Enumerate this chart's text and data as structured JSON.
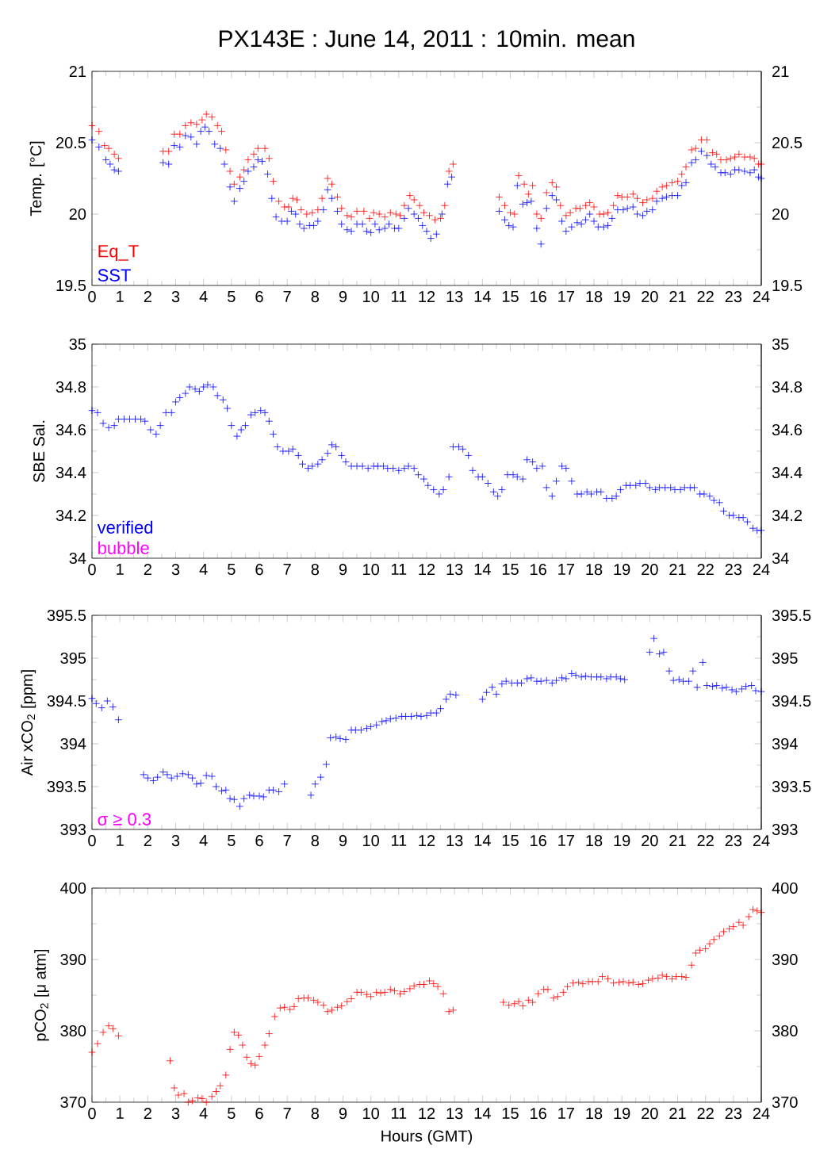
{
  "chart_data": [
    {
      "type": "scatter",
      "title": "PX143E : June 14, 2011 : 10min. mean",
      "ylabel": "Temp. [°C]",
      "xlim": [
        0,
        24
      ],
      "xticks": [
        0,
        1,
        2,
        3,
        4,
        5,
        6,
        7,
        8,
        9,
        10,
        11,
        12,
        13,
        14,
        15,
        16,
        17,
        18,
        19,
        20,
        21,
        22,
        23,
        24
      ],
      "ylim": [
        19.5,
        21
      ],
      "yticks": [
        19.5,
        20,
        20.5,
        21
      ],
      "y2lim": [
        19.5,
        21
      ],
      "y2ticks": [
        19.5,
        20,
        20.5,
        21
      ],
      "marker": "cross",
      "legend": "bottom left",
      "series": [
        {
          "name": "Eq_T",
          "color": "#ff0000",
          "x": [
            0.0,
            0.25,
            0.45,
            0.6,
            0.8,
            0.95,
            2.55,
            2.75,
            2.95,
            3.15,
            3.35,
            3.55,
            3.75,
            3.95,
            4.1,
            4.3,
            4.5,
            4.65,
            4.8,
            4.95,
            5.1,
            5.3,
            5.45,
            5.6,
            5.8,
            5.95,
            6.2,
            6.35,
            6.5,
            6.7,
            6.9,
            7.05,
            7.2,
            7.35,
            7.5,
            7.7,
            7.9,
            8.1,
            8.25,
            8.45,
            8.6,
            8.8,
            8.95,
            9.15,
            9.3,
            9.5,
            9.75,
            9.95,
            10.1,
            10.3,
            10.5,
            10.7,
            10.9,
            11.05,
            11.2,
            11.4,
            11.55,
            11.75,
            11.9,
            12.1,
            12.3,
            12.5,
            12.65,
            12.8,
            12.95,
            14.6,
            14.8,
            15.0,
            15.15,
            15.3,
            15.5,
            15.65,
            15.8,
            15.95,
            16.1,
            16.3,
            16.5,
            16.65,
            16.8,
            17.0,
            17.15,
            17.35,
            17.5,
            17.7,
            17.85,
            18.0,
            18.2,
            18.35,
            18.5,
            18.7,
            18.85,
            19.0,
            19.2,
            19.4,
            19.55,
            19.75,
            19.9,
            20.1,
            20.25,
            20.45,
            20.6,
            20.8,
            21.0,
            21.15,
            21.3,
            21.5,
            21.65,
            21.85,
            22.05,
            22.25,
            22.4,
            22.55,
            22.75,
            22.9,
            23.05,
            23.2,
            23.4,
            23.6,
            23.75,
            23.9,
            24.0
          ],
          "values": [
            20.62,
            20.58,
            20.48,
            20.46,
            20.42,
            20.39,
            20.44,
            20.44,
            20.56,
            20.56,
            20.62,
            20.64,
            20.63,
            20.66,
            20.7,
            20.68,
            20.62,
            20.58,
            20.45,
            20.3,
            20.21,
            20.26,
            20.31,
            20.38,
            20.42,
            20.46,
            20.46,
            20.39,
            20.23,
            20.09,
            20.05,
            20.05,
            20.11,
            20.1,
            20.03,
            20.0,
            20.01,
            20.03,
            20.11,
            20.25,
            20.21,
            20.12,
            20.04,
            19.99,
            19.98,
            20.02,
            20.02,
            19.97,
            20.01,
            20.0,
            19.98,
            20.01,
            20.0,
            19.99,
            20.06,
            20.13,
            20.1,
            20.06,
            20.01,
            19.99,
            19.96,
            19.97,
            20.06,
            20.3,
            20.35,
            20.12,
            20.06,
            20.01,
            20.0,
            20.27,
            20.21,
            20.14,
            20.2,
            20.0,
            19.97,
            20.15,
            20.22,
            20.19,
            20.06,
            19.99,
            20.01,
            20.04,
            20.04,
            20.06,
            20.08,
            20.05,
            20.0,
            20.0,
            20.01,
            20.06,
            20.13,
            20.12,
            20.12,
            20.14,
            20.11,
            20.08,
            20.1,
            20.11,
            20.16,
            20.19,
            20.2,
            20.22,
            20.23,
            20.28,
            20.33,
            20.45,
            20.46,
            20.52,
            20.52,
            20.43,
            20.42,
            20.38,
            20.38,
            20.39,
            20.4,
            20.42,
            20.4,
            20.4,
            20.39,
            20.35,
            20.35
          ]
        },
        {
          "name": "SST",
          "color": "#0000ff",
          "x": [
            0.0,
            0.25,
            0.5,
            0.65,
            0.8,
            0.95,
            2.55,
            2.75,
            2.95,
            3.15,
            3.35,
            3.55,
            3.75,
            3.9,
            4.05,
            4.2,
            4.4,
            4.6,
            4.75,
            4.95,
            5.1,
            5.3,
            5.45,
            5.6,
            5.8,
            5.95,
            6.1,
            6.3,
            6.45,
            6.6,
            6.8,
            7.0,
            7.15,
            7.3,
            7.45,
            7.6,
            7.8,
            7.95,
            8.1,
            8.3,
            8.45,
            8.6,
            8.8,
            8.95,
            9.15,
            9.3,
            9.5,
            9.7,
            9.85,
            10.0,
            10.15,
            10.3,
            10.5,
            10.65,
            10.85,
            11.0,
            11.2,
            11.35,
            11.55,
            11.7,
            11.85,
            12.0,
            12.15,
            12.35,
            12.55,
            12.75,
            12.9,
            14.6,
            14.8,
            14.95,
            15.1,
            15.25,
            15.45,
            15.6,
            15.75,
            15.95,
            16.1,
            16.3,
            16.5,
            16.65,
            16.85,
            17.0,
            17.2,
            17.4,
            17.55,
            17.7,
            17.85,
            18.0,
            18.15,
            18.35,
            18.5,
            18.65,
            18.85,
            19.05,
            19.2,
            19.4,
            19.55,
            19.75,
            19.9,
            20.1,
            20.25,
            20.45,
            20.6,
            20.8,
            21.0,
            21.15,
            21.3,
            21.5,
            21.65,
            21.85,
            22.05,
            22.2,
            22.35,
            22.55,
            22.7,
            22.9,
            23.05,
            23.2,
            23.4,
            23.6,
            23.75,
            23.9,
            24.0
          ],
          "values": [
            20.52,
            20.47,
            20.38,
            20.35,
            20.31,
            20.3,
            20.36,
            20.35,
            20.48,
            20.47,
            20.55,
            20.54,
            20.49,
            20.58,
            20.61,
            20.58,
            20.49,
            20.46,
            20.35,
            20.19,
            20.09,
            20.18,
            20.23,
            20.3,
            20.33,
            20.38,
            20.37,
            20.28,
            20.11,
            19.98,
            19.95,
            19.95,
            20.02,
            20.0,
            19.93,
            19.9,
            19.92,
            19.92,
            19.95,
            20.03,
            20.17,
            20.11,
            20.02,
            19.93,
            19.89,
            19.88,
            19.93,
            19.93,
            19.88,
            19.87,
            19.93,
            19.89,
            19.9,
            19.93,
            19.9,
            19.9,
            19.97,
            20.04,
            20.0,
            19.97,
            19.92,
            19.88,
            19.83,
            19.86,
            20.0,
            20.21,
            20.26,
            20.02,
            19.96,
            19.92,
            19.91,
            20.2,
            20.07,
            20.08,
            20.09,
            19.9,
            19.79,
            20.04,
            20.13,
            20.1,
            19.95,
            19.88,
            19.91,
            19.94,
            19.93,
            19.96,
            20.0,
            19.95,
            19.91,
            19.91,
            19.92,
            19.97,
            20.03,
            20.03,
            20.04,
            20.05,
            20.0,
            19.99,
            20.02,
            20.03,
            20.09,
            20.11,
            20.12,
            20.13,
            20.13,
            20.2,
            20.22,
            20.36,
            20.38,
            20.44,
            20.41,
            20.35,
            20.33,
            20.29,
            20.29,
            20.28,
            20.31,
            20.31,
            20.3,
            20.29,
            20.31,
            20.26,
            20.25
          ]
        }
      ]
    },
    {
      "type": "scatter",
      "ylabel": "SBE Sal.",
      "xlim": [
        0,
        24
      ],
      "xticks": [
        0,
        1,
        2,
        3,
        4,
        5,
        6,
        7,
        8,
        9,
        10,
        11,
        12,
        13,
        14,
        15,
        16,
        17,
        18,
        19,
        20,
        21,
        22,
        23,
        24
      ],
      "ylim": [
        34,
        35
      ],
      "yticks": [
        34,
        34.2,
        34.4,
        34.6,
        34.8,
        35
      ],
      "y2lim": [
        34,
        35
      ],
      "y2ticks": [
        34,
        34.2,
        34.4,
        34.6,
        34.8,
        35
      ],
      "marker": "cross",
      "legend": "bottom left",
      "series": [
        {
          "name": "verified",
          "color": "#0000ff",
          "x": [
            0.0,
            0.2,
            0.4,
            0.6,
            0.8,
            0.95,
            1.15,
            1.35,
            1.55,
            1.75,
            1.9,
            2.1,
            2.3,
            2.45,
            2.65,
            2.85,
            3.0,
            3.15,
            3.35,
            3.5,
            3.7,
            3.85,
            4.0,
            4.15,
            4.35,
            4.5,
            4.7,
            4.85,
            5.0,
            5.2,
            5.35,
            5.5,
            5.7,
            5.85,
            6.05,
            6.2,
            6.35,
            6.5,
            6.65,
            6.85,
            7.05,
            7.2,
            7.4,
            7.55,
            7.75,
            7.9,
            8.1,
            8.25,
            8.45,
            8.6,
            8.75,
            8.95,
            9.1,
            9.3,
            9.5,
            9.7,
            9.9,
            10.1,
            10.25,
            10.45,
            10.6,
            10.8,
            11.0,
            11.2,
            11.35,
            11.55,
            11.7,
            11.9,
            12.05,
            12.25,
            12.45,
            12.6,
            12.8,
            12.95,
            13.15,
            13.3,
            13.5,
            13.65,
            13.85,
            14.0,
            14.2,
            14.4,
            14.55,
            14.7,
            14.9,
            15.1,
            15.25,
            15.45,
            15.6,
            15.8,
            15.95,
            16.15,
            16.3,
            16.5,
            16.65,
            16.85,
            17.0,
            17.2,
            17.4,
            17.55,
            17.75,
            17.9,
            18.1,
            18.25,
            18.45,
            18.65,
            18.8,
            18.95,
            19.15,
            19.3,
            19.5,
            19.65,
            19.85,
            20.0,
            20.2,
            20.35,
            20.55,
            20.75,
            20.9,
            21.1,
            21.25,
            21.45,
            21.6,
            21.8,
            21.95,
            22.15,
            22.3,
            22.5,
            22.65,
            22.85,
            23.0,
            23.2,
            23.35,
            23.5,
            23.7,
            23.85,
            24.0
          ],
          "values": [
            34.69,
            34.68,
            34.63,
            34.61,
            34.62,
            34.65,
            34.65,
            34.65,
            34.65,
            34.65,
            34.64,
            34.6,
            34.58,
            34.62,
            34.68,
            34.68,
            34.73,
            34.75,
            34.77,
            34.8,
            34.79,
            34.78,
            34.8,
            34.81,
            34.8,
            34.76,
            34.74,
            34.7,
            34.62,
            34.57,
            34.6,
            34.62,
            34.67,
            34.68,
            34.69,
            34.68,
            34.64,
            34.58,
            34.52,
            34.5,
            34.5,
            34.51,
            34.48,
            34.44,
            34.42,
            34.43,
            34.44,
            34.46,
            34.49,
            34.53,
            34.52,
            34.48,
            34.45,
            34.43,
            34.43,
            34.43,
            34.42,
            34.43,
            34.43,
            34.43,
            34.42,
            34.42,
            34.41,
            34.42,
            34.43,
            34.42,
            34.39,
            34.37,
            34.34,
            34.32,
            34.3,
            34.32,
            34.38,
            34.52,
            34.52,
            34.51,
            34.48,
            34.41,
            34.38,
            34.38,
            34.35,
            34.31,
            34.29,
            34.32,
            34.39,
            34.39,
            34.38,
            34.37,
            34.46,
            34.45,
            34.42,
            34.43,
            34.33,
            34.29,
            34.36,
            34.43,
            34.42,
            34.36,
            34.3,
            34.3,
            34.31,
            34.3,
            34.31,
            34.31,
            34.28,
            34.28,
            34.29,
            34.32,
            34.34,
            34.34,
            34.34,
            34.35,
            34.35,
            34.33,
            34.32,
            34.33,
            34.33,
            34.33,
            34.32,
            34.32,
            34.33,
            34.33,
            34.33,
            34.3,
            34.3,
            34.29,
            34.27,
            34.26,
            34.22,
            34.2,
            34.2,
            34.19,
            34.19,
            34.17,
            34.14,
            34.13,
            34.13
          ]
        },
        {
          "name": "bubble",
          "color": "#ff00ff"
        }
      ]
    },
    {
      "type": "scatter",
      "ylabel": "Air xCO$_{2}$ [ppm]",
      "xlim": [
        0,
        24
      ],
      "xticks": [
        0,
        1,
        2,
        3,
        4,
        5,
        6,
        7,
        8,
        9,
        10,
        11,
        12,
        13,
        14,
        15,
        16,
        17,
        18,
        19,
        20,
        21,
        22,
        23,
        24
      ],
      "ylim": [
        393,
        395.5
      ],
      "yticks": [
        393,
        393.5,
        394,
        394.5,
        395,
        395.5
      ],
      "y2lim": [
        393,
        395.5
      ],
      "y2ticks": [
        393,
        393.5,
        394,
        394.5,
        395,
        395.5
      ],
      "marker": "cross",
      "series": [
        {
          "color": "#0000ff",
          "x": [
            0.0,
            0.15,
            0.35,
            0.55,
            0.75,
            0.95,
            1.85,
            2.0,
            2.2,
            2.35,
            2.55,
            2.7,
            2.85,
            3.05,
            3.25,
            3.45,
            3.6,
            3.75,
            3.9,
            4.1,
            4.3,
            4.45,
            4.65,
            4.8,
            4.95,
            5.1,
            5.3,
            5.45,
            5.65,
            5.8,
            6.0,
            6.15,
            6.35,
            6.5,
            6.7,
            6.9,
            7.85,
            8.0,
            8.2,
            8.4,
            8.55,
            8.75,
            8.9,
            9.1,
            9.3,
            9.45,
            9.65,
            9.85,
            10.0,
            10.2,
            10.4,
            10.55,
            10.7,
            10.9,
            11.1,
            11.25,
            11.45,
            11.65,
            11.8,
            12.0,
            12.15,
            12.35,
            12.5,
            12.7,
            12.85,
            13.05,
            14.0,
            14.15,
            14.35,
            14.5,
            14.7,
            14.85,
            15.05,
            15.25,
            15.4,
            15.6,
            15.75,
            15.95,
            16.1,
            16.3,
            16.5,
            16.65,
            16.85,
            17.0,
            17.2,
            17.35,
            17.55,
            17.7,
            17.9,
            18.1,
            18.25,
            18.45,
            18.6,
            18.8,
            18.95,
            19.1,
            20.0,
            20.15,
            20.35,
            20.5,
            20.7,
            20.85,
            21.05,
            21.2,
            21.4,
            21.55,
            21.7,
            21.9,
            22.05,
            22.25,
            22.4,
            22.6,
            22.75,
            22.95,
            23.1,
            23.3,
            23.45,
            23.65,
            23.8,
            24.0
          ],
          "values": [
            394.53,
            394.47,
            394.42,
            394.5,
            394.43,
            394.28,
            393.64,
            393.6,
            393.57,
            393.61,
            393.67,
            393.64,
            393.6,
            393.62,
            393.65,
            393.64,
            393.6,
            393.53,
            393.54,
            393.63,
            393.62,
            393.5,
            393.45,
            393.46,
            393.36,
            393.35,
            393.27,
            393.36,
            393.4,
            393.39,
            393.39,
            393.38,
            393.46,
            393.46,
            393.44,
            393.53,
            393.4,
            393.53,
            393.61,
            393.76,
            394.07,
            394.08,
            394.06,
            394.05,
            394.16,
            394.16,
            394.16,
            394.18,
            394.2,
            394.22,
            394.26,
            394.27,
            394.29,
            394.3,
            394.32,
            394.32,
            394.32,
            394.33,
            394.32,
            394.33,
            394.36,
            394.36,
            394.41,
            394.52,
            394.58,
            394.57,
            394.52,
            394.6,
            394.66,
            394.58,
            394.7,
            394.73,
            394.71,
            394.71,
            394.71,
            394.76,
            394.77,
            394.73,
            394.73,
            394.74,
            394.71,
            394.74,
            394.77,
            394.76,
            394.82,
            394.8,
            394.78,
            394.79,
            394.78,
            394.78,
            394.78,
            394.76,
            394.78,
            394.78,
            394.76,
            394.75,
            395.07,
            395.23,
            395.05,
            395.07,
            394.85,
            394.74,
            394.75,
            394.73,
            394.73,
            394.85,
            394.66,
            394.95,
            394.68,
            394.67,
            394.68,
            394.65,
            394.66,
            394.63,
            394.61,
            394.64,
            394.67,
            394.68,
            394.62,
            394.61
          ]
        },
        {
          "name": "σ ≥ 0.3",
          "color": "#ff00ff"
        }
      ]
    },
    {
      "type": "scatter",
      "ylabel": "pCO$_{2}$ [μ atm]",
      "xlabel": "Hours (GMT)",
      "xlim": [
        0,
        24
      ],
      "xticks": [
        0,
        1,
        2,
        3,
        4,
        5,
        6,
        7,
        8,
        9,
        10,
        11,
        12,
        13,
        14,
        15,
        16,
        17,
        18,
        19,
        20,
        21,
        22,
        23,
        24
      ],
      "ylim": [
        370,
        400
      ],
      "yticks": [
        370,
        380,
        390,
        400
      ],
      "y2lim": [
        370,
        400
      ],
      "y2ticks": [
        370,
        380,
        390,
        400
      ],
      "marker": "cross",
      "series": [
        {
          "color": "#ff0000",
          "x": [
            0.0,
            0.2,
            0.4,
            0.6,
            0.75,
            0.95,
            2.8,
            2.95,
            3.1,
            3.3,
            3.45,
            3.6,
            3.8,
            3.95,
            4.1,
            4.3,
            4.45,
            4.6,
            4.8,
            4.95,
            5.1,
            5.25,
            5.4,
            5.55,
            5.7,
            5.85,
            6.0,
            6.2,
            6.35,
            6.55,
            6.75,
            6.9,
            7.1,
            7.25,
            7.4,
            7.6,
            7.75,
            7.95,
            8.1,
            8.3,
            8.45,
            8.6,
            8.8,
            8.95,
            9.15,
            9.3,
            9.5,
            9.65,
            9.85,
            10.0,
            10.2,
            10.35,
            10.5,
            10.7,
            10.85,
            11.05,
            11.2,
            11.4,
            11.55,
            11.75,
            11.9,
            12.1,
            12.25,
            12.4,
            12.6,
            12.8,
            12.95,
            14.75,
            14.95,
            15.15,
            15.3,
            15.45,
            15.65,
            15.8,
            16.0,
            16.2,
            16.35,
            16.55,
            16.7,
            16.9,
            17.05,
            17.25,
            17.45,
            17.6,
            17.8,
            17.95,
            18.15,
            18.3,
            18.5,
            18.7,
            18.9,
            19.05,
            19.25,
            19.4,
            19.6,
            19.75,
            19.95,
            20.1,
            20.3,
            20.45,
            20.6,
            20.8,
            20.95,
            21.15,
            21.3,
            21.5,
            21.65,
            21.8,
            22.0,
            22.15,
            22.3,
            22.5,
            22.65,
            22.85,
            23.0,
            23.2,
            23.35,
            23.55,
            23.7,
            23.85,
            24.0
          ],
          "values": [
            377.0,
            378.2,
            379.8,
            380.7,
            380.3,
            379.3,
            375.8,
            372.0,
            371.0,
            371.2,
            370.0,
            370.2,
            370.6,
            370.5,
            370.0,
            370.8,
            371.5,
            372.3,
            373.8,
            377.4,
            379.8,
            379.4,
            378.0,
            376.3,
            375.4,
            375.2,
            376.4,
            378.0,
            379.6,
            382.0,
            383.2,
            383.3,
            383.0,
            383.4,
            384.5,
            384.6,
            384.6,
            384.3,
            384.0,
            383.6,
            382.7,
            382.9,
            383.3,
            383.5,
            384.1,
            384.5,
            385.4,
            385.4,
            385.1,
            384.8,
            385.4,
            385.3,
            385.4,
            385.8,
            385.6,
            385.2,
            385.5,
            385.9,
            386.3,
            386.5,
            386.5,
            387.0,
            386.6,
            386.2,
            385.2,
            382.7,
            382.9,
            384.0,
            383.6,
            383.8,
            384.1,
            383.5,
            384.3,
            384.0,
            385.2,
            385.8,
            385.8,
            384.6,
            384.8,
            385.4,
            386.2,
            386.7,
            386.8,
            386.6,
            386.9,
            386.9,
            386.9,
            387.6,
            387.3,
            386.7,
            386.8,
            386.9,
            386.7,
            386.8,
            386.5,
            386.6,
            387.1,
            387.3,
            387.4,
            387.8,
            387.6,
            387.3,
            387.6,
            387.6,
            387.5,
            389.2,
            390.9,
            391.3,
            391.5,
            392.2,
            392.8,
            393.3,
            393.9,
            394.3,
            394.6,
            395.2,
            394.8,
            396.0,
            397.0,
            396.8,
            396.6
          ]
        }
      ]
    }
  ]
}
